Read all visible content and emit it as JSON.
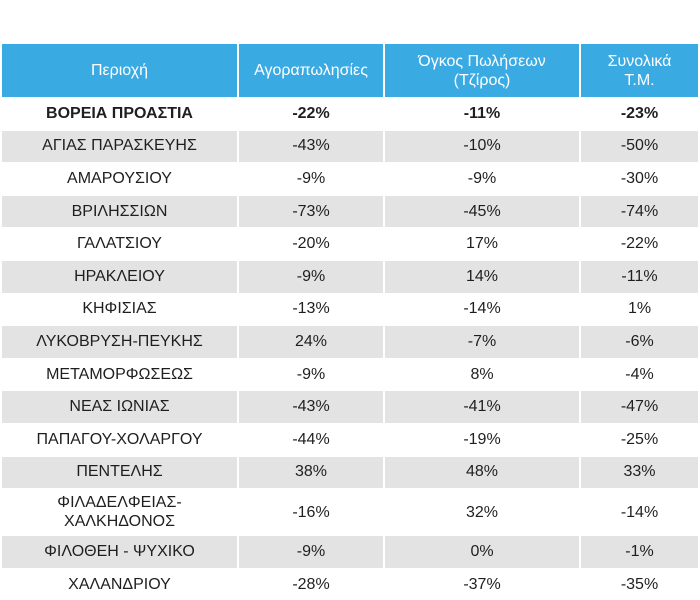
{
  "table": {
    "headers": [
      "Περιοχή",
      "Αγοραπωλησίες",
      "Όγκος Πωλήσεων\n(Τζίρος)",
      "Συνολικά\nΤ.Μ."
    ],
    "rows": [
      {
        "region": "ΒΟΡΕΙΑ ΠΡΟΑΣΤΙΑ",
        "sales": "-22%",
        "turnover": "-11%",
        "total_sqm": "-23%",
        "bold": true
      },
      {
        "region": "ΑΓΙΑΣ ΠΑΡΑΣΚΕΥΗΣ",
        "sales": "-43%",
        "turnover": "-10%",
        "total_sqm": "-50%"
      },
      {
        "region": "ΑΜΑΡΟΥΣΙΟΥ",
        "sales": "-9%",
        "turnover": "-9%",
        "total_sqm": "-30%"
      },
      {
        "region": "ΒΡΙΛΗΣΣΙΩΝ",
        "sales": "-73%",
        "turnover": "-45%",
        "total_sqm": "-74%"
      },
      {
        "region": "ΓΑΛΑΤΣΙΟΥ",
        "sales": "-20%",
        "turnover": "17%",
        "total_sqm": "-22%"
      },
      {
        "region": "ΗΡΑΚΛΕΙΟΥ",
        "sales": "-9%",
        "turnover": "14%",
        "total_sqm": "-11%"
      },
      {
        "region": "ΚΗΦΙΣΙΑΣ",
        "sales": "-13%",
        "turnover": "-14%",
        "total_sqm": "1%"
      },
      {
        "region": "ΛΥΚΟΒΡΥΣΗ-ΠΕΥΚΗΣ",
        "sales": "24%",
        "turnover": "-7%",
        "total_sqm": "-6%"
      },
      {
        "region": "ΜΕΤΑΜΟΡΦΩΣΕΩΣ",
        "sales": "-9%",
        "turnover": "8%",
        "total_sqm": "-4%"
      },
      {
        "region": "ΝΕΑΣ ΙΩΝΙΑΣ",
        "sales": "-43%",
        "turnover": "-41%",
        "total_sqm": "-47%"
      },
      {
        "region": "ΠΑΠΑΓΟΥ-ΧΟΛΑΡΓΟΥ",
        "sales": "-44%",
        "turnover": "-19%",
        "total_sqm": "-25%"
      },
      {
        "region": "ΠΕΝΤΕΛΗΣ",
        "sales": "38%",
        "turnover": "48%",
        "total_sqm": "33%"
      },
      {
        "region": "ΦΙΛΑΔΕΛΦΕΙΑΣ-\nΧΑΛΚΗΔΟΝΟΣ",
        "sales": "-16%",
        "turnover": "32%",
        "total_sqm": "-14%",
        "tall": true
      },
      {
        "region": "ΦΙΛΟΘΕΗ - ΨΥΧΙΚΟ",
        "sales": "-9%",
        "turnover": "0%",
        "total_sqm": "-1%"
      },
      {
        "region": "ΧΑΛΑΝΔΡΙΟΥ",
        "sales": "-28%",
        "turnover": "-37%",
        "total_sqm": "-35%"
      }
    ]
  },
  "colors": {
    "header_bg": "#3aaae3",
    "header_text": "#ffffff",
    "stripe_bg": "#e3e3e3"
  }
}
